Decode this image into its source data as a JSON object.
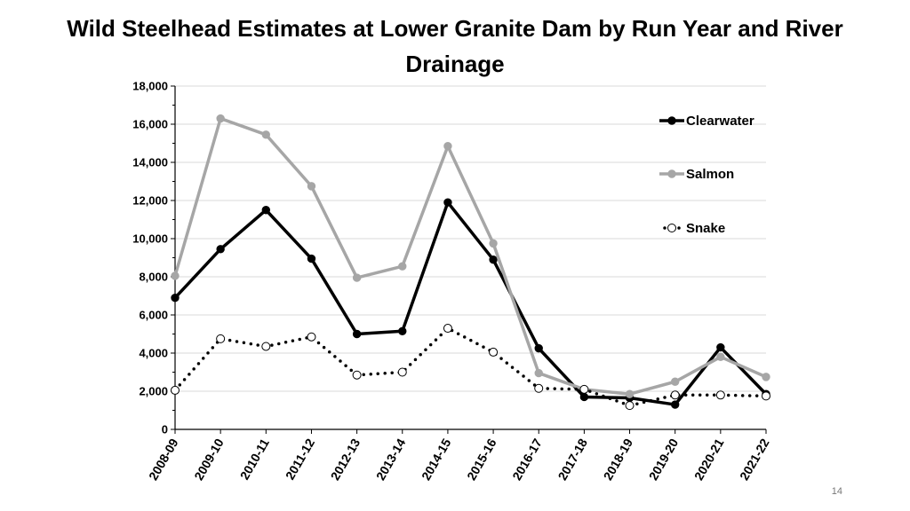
{
  "page": {
    "number": "14"
  },
  "chart_data": {
    "type": "line",
    "title": "Wild Steelhead Estimates at Lower Granite Dam by Run Year and River Drainage",
    "xlabel": "",
    "ylabel": "",
    "ylim": [
      0,
      18000
    ],
    "yticks": [
      0,
      2000,
      4000,
      6000,
      8000,
      10000,
      12000,
      14000,
      16000,
      18000
    ],
    "ytick_labels": [
      "0",
      "2,000",
      "4,000",
      "6,000",
      "8,000",
      "10,000",
      "12,000",
      "14,000",
      "16,000",
      "18,000"
    ],
    "grid": true,
    "legend_position": "right",
    "categories": [
      "2008-09",
      "2009-10",
      "2010-11",
      "2011-12",
      "2012-13",
      "2013-14",
      "2014-15",
      "2015-16",
      "2016-17",
      "2017-18",
      "2018-19",
      "2019-20",
      "2020-21",
      "2021-22"
    ],
    "series": [
      {
        "name": "Clearwater",
        "color": "#000000",
        "style": "solid-filled-marker",
        "values": [
          6900,
          9450,
          11500,
          8950,
          5000,
          5150,
          11900,
          8900,
          4250,
          1700,
          1650,
          1300,
          4300,
          1850
        ]
      },
      {
        "name": "Salmon",
        "color": "#a6a6a6",
        "style": "solid-filled-marker",
        "values": [
          8050,
          16300,
          15450,
          12750,
          7950,
          8550,
          14850,
          9750,
          2950,
          2100,
          1850,
          2500,
          3800,
          2750
        ]
      },
      {
        "name": "Snake",
        "color": "#000000",
        "style": "dotted-open-marker",
        "values": [
          2050,
          4750,
          4350,
          4850,
          2850,
          3000,
          5300,
          4050,
          2150,
          2100,
          1250,
          1800,
          1800,
          1750
        ]
      }
    ]
  }
}
